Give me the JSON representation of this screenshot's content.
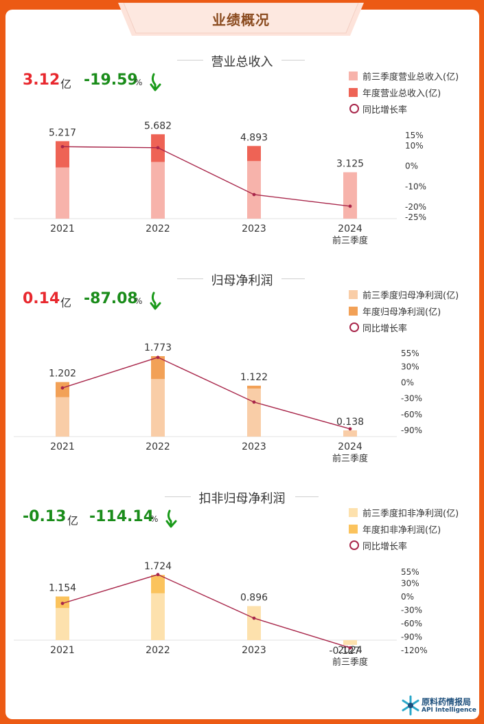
{
  "header": {
    "title": "业绩概况"
  },
  "colors": {
    "revenue_q3": "#f7b3ab",
    "revenue_year": "#ee6355",
    "profit_q3": "#f9cda7",
    "profit_year": "#f2a157",
    "deducted_q3": "#fde1ad",
    "deducted_year": "#fbc35d",
    "growth_line": "#a8264a",
    "positive": "#e8282e",
    "negative": "#1a8c1a"
  },
  "sections": [
    {
      "title": "营业总收入",
      "summary": {
        "value": "3.12",
        "unit": "亿",
        "change": "-19.59",
        "pct_sign": "%",
        "value_tone": "positive",
        "direction": "down"
      },
      "legend": [
        "前三季度营业总收入(亿)",
        "年度营业总收入(亿)",
        "同比增长率"
      ]
    },
    {
      "title": "归母净利润",
      "summary": {
        "value": "0.14",
        "unit": "亿",
        "change": "-87.08",
        "pct_sign": "%",
        "value_tone": "positive",
        "direction": "down"
      },
      "legend": [
        "前三季度归母净利润(亿)",
        "年度归母净利润(亿)",
        "同比增长率"
      ]
    },
    {
      "title": "扣非归母净利润",
      "summary": {
        "value": "-0.13",
        "unit": "亿",
        "change": "-114.14",
        "pct_sign": "%",
        "value_tone": "negative",
        "direction": "down"
      },
      "legend": [
        "前三季度扣非净利润(亿)",
        "年度扣非净利润(亿)",
        "同比增长率"
      ]
    }
  ],
  "chart_data": [
    {
      "type": "bar",
      "title": "营业总收入",
      "categories": [
        "2021",
        "2022",
        "2023",
        "2024"
      ],
      "category_sublabels": [
        "",
        "",
        "",
        "前三季度"
      ],
      "series": [
        {
          "name": "前三季度营业总收入(亿)",
          "values": [
            3.45,
            3.82,
            3.88,
            3.125
          ]
        },
        {
          "name": "年度营业总收入(亿)",
          "values": [
            5.217,
            5.682,
            4.893,
            null
          ]
        },
        {
          "name": "同比增长率",
          "values": [
            9.5,
            9,
            -13.9,
            -19.59
          ],
          "axis": "right"
        }
      ],
      "bar_labels": [
        "5.217",
        "5.682",
        "4.893",
        "3.125"
      ],
      "ylim": [
        0,
        6.5
      ],
      "y2_ticks": [
        "15%",
        "10%",
        "0%",
        "-10%",
        "-20%",
        "-25%"
      ],
      "y2_tick_values": [
        15,
        10,
        0,
        -10,
        -20,
        -25
      ]
    },
    {
      "type": "bar",
      "title": "归母净利润",
      "categories": [
        "2021",
        "2022",
        "2023",
        "2024"
      ],
      "category_sublabels": [
        "",
        "",
        "",
        "前三季度"
      ],
      "series": [
        {
          "name": "前三季度归母净利润(亿)",
          "values": [
            0.87,
            1.27,
            1.06,
            0.138
          ]
        },
        {
          "name": "年度归母净利润(亿)",
          "values": [
            1.202,
            1.773,
            1.122,
            null
          ]
        },
        {
          "name": "同比增长率",
          "values": [
            -10,
            47.5,
            -36.7,
            -87.08
          ],
          "axis": "right"
        }
      ],
      "bar_labels": [
        "1.202",
        "1.773",
        "1.122",
        "0.138"
      ],
      "ylim": [
        0,
        2.1
      ],
      "y2_ticks": [
        "55%",
        "30%",
        "0%",
        "-30%",
        "-60%",
        "-90%"
      ],
      "y2_tick_values": [
        55,
        30,
        0,
        -30,
        -60,
        -90
      ]
    },
    {
      "type": "bar",
      "title": "扣非归母净利润",
      "categories": [
        "2021",
        "2022",
        "2023",
        "2024"
      ],
      "category_sublabels": [
        "",
        "",
        "",
        "前三季度"
      ],
      "series": [
        {
          "name": "前三季度扣非净利润(亿)",
          "values": [
            0.85,
            1.24,
            0.896,
            -0.127
          ]
        },
        {
          "name": "年度扣非净利润(亿)",
          "values": [
            1.154,
            1.724,
            0.896,
            null
          ]
        },
        {
          "name": "同比增长率",
          "values": [
            -15,
            49.4,
            -48,
            -114.14
          ],
          "axis": "right"
        }
      ],
      "bar_labels": [
        "1.154",
        "1.724",
        "0.896",
        "-0.127"
      ],
      "ylim": [
        -0.2,
        2.0
      ],
      "y2_ticks": [
        "55%",
        "30%",
        "0%",
        "-30%",
        "-60%",
        "-90%",
        "-120%"
      ],
      "y2_tick_values": [
        55,
        30,
        0,
        -30,
        -60,
        -90,
        -120
      ]
    }
  ],
  "brand": {
    "name": "原料药情报局",
    "sub": "API Intelligence"
  }
}
